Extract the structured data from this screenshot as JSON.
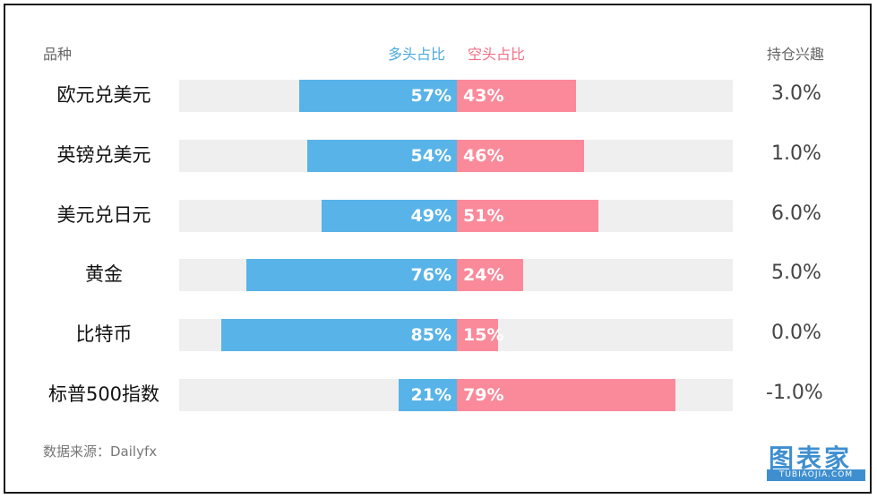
{
  "header": {
    "category_label": "品种",
    "long_label": "多头占比",
    "short_label": "空头占比",
    "interest_label": "持仓兴趣"
  },
  "colors": {
    "long": "#58b3e8",
    "short": "#fa8a9a",
    "track": "#efefef",
    "long_header": "#4aa9df",
    "short_header": "#f06f84"
  },
  "chart_data": {
    "type": "bar",
    "orientation": "horizontal",
    "diverging": true,
    "categories": [
      "欧元兑美元",
      "英镑兑美元",
      "美元兑日元",
      "黄金",
      "比特币",
      "标普500指数"
    ],
    "series": [
      {
        "name": "多头占比",
        "values": [
          57,
          54,
          49,
          76,
          85,
          21
        ],
        "labels": [
          "57%",
          "54%",
          "49%",
          "76%",
          "85%",
          "21%"
        ]
      },
      {
        "name": "空头占比",
        "values": [
          43,
          46,
          51,
          24,
          15,
          79
        ],
        "labels": [
          "43%",
          "46%",
          "51%",
          "24%",
          "15%",
          "79%"
        ]
      }
    ],
    "interest_column": {
      "title": "持仓兴趣",
      "values": [
        "3.0%",
        "1.0%",
        "6.0%",
        "5.0%",
        "0.0%",
        "-1.0%"
      ]
    },
    "xlim": [
      0,
      100
    ],
    "grid": false
  },
  "footer": {
    "source": "数据来源：Dailyfx",
    "logo_main": "图表家",
    "logo_sub": "TUBIAOJIA.COM"
  }
}
